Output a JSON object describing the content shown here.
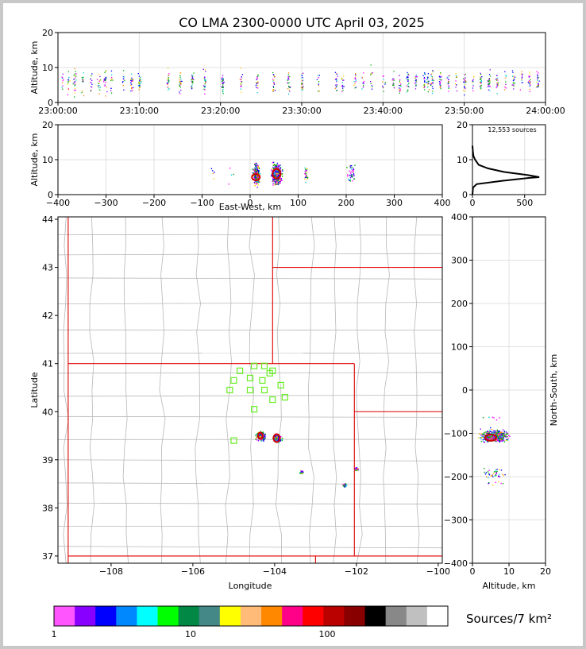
{
  "page": {
    "title": "CO LMA 2300-0000 UTC April 03, 2025",
    "background": "#c8c8c8"
  },
  "chart_data": [
    {
      "id": "time_altitude",
      "type": "scatter",
      "ylabel": "Altitude, km",
      "xlim": [
        "23:00:00",
        "24:00:00"
      ],
      "ylim": [
        0,
        20
      ],
      "xticks": [
        "23:00:00",
        "23:10:00",
        "23:20:00",
        "23:30:00",
        "23:40:00",
        "23:50:00",
        "24:00:00"
      ],
      "yticks": [
        "0",
        "10",
        "20"
      ],
      "grid": true,
      "note_bursts_minutes": [
        0.5,
        1.2,
        2,
        3,
        4,
        5,
        5.8,
        6.5,
        8,
        9,
        10,
        13.5,
        15,
        16.5,
        18,
        20.2,
        22.5,
        24.5,
        26.5,
        28.3,
        30,
        32,
        34.2,
        35,
        36.5,
        37.5,
        38.5,
        40,
        41.2,
        42,
        43,
        44,
        45,
        45.5,
        46,
        47,
        48,
        49,
        50,
        51,
        52,
        53,
        54,
        55,
        56,
        57,
        58,
        59
      ]
    },
    {
      "id": "ew_altitude",
      "type": "scatter",
      "xlabel": "East-West, km",
      "ylabel": "Altitude, km",
      "xlim": [
        -400,
        400
      ],
      "ylim": [
        0,
        20
      ],
      "xticks": [
        "−400",
        "−300",
        "−200",
        "−100",
        "0",
        "100",
        "200",
        "300",
        "400"
      ],
      "yticks": [
        "0",
        "10",
        "20"
      ],
      "grid": true
    },
    {
      "id": "altitude_histogram",
      "type": "line",
      "annotation": "12,553 sources",
      "xlim": [
        0,
        700
      ],
      "ylim": [
        0,
        20
      ],
      "xticks": [
        "0",
        "500"
      ],
      "yticks": [
        "0",
        "10",
        "20"
      ],
      "profile": [
        [
          0,
          0
        ],
        [
          5,
          2
        ],
        [
          40,
          3
        ],
        [
          300,
          4
        ],
        [
          550,
          4.8
        ],
        [
          640,
          5
        ],
        [
          530,
          5.6
        ],
        [
          300,
          6.5
        ],
        [
          150,
          7.5
        ],
        [
          60,
          8.5
        ],
        [
          25,
          10
        ],
        [
          10,
          11
        ],
        [
          4,
          12.5
        ],
        [
          0,
          14
        ]
      ]
    },
    {
      "id": "plan_view",
      "type": "scatter",
      "xlabel": "Longitude",
      "ylabel": "Latitude",
      "xlim": [
        -109.3,
        -99.9
      ],
      "ylim": [
        36.85,
        44.05
      ],
      "xticks": [
        "−108",
        "−106",
        "−104",
        "−102",
        "−100"
      ],
      "yticks": [
        "37",
        "38",
        "39",
        "40",
        "41",
        "42",
        "43",
        "44"
      ],
      "stations": [
        [
          -104.25,
          40.95
        ],
        [
          -104.5,
          40.95
        ],
        [
          -104.85,
          40.85
        ],
        [
          -104.05,
          40.85
        ],
        [
          -104.12,
          40.8
        ],
        [
          -104.6,
          40.7
        ],
        [
          -105.0,
          40.65
        ],
        [
          -104.3,
          40.65
        ],
        [
          -103.85,
          40.55
        ],
        [
          -104.25,
          40.45
        ],
        [
          -104.6,
          40.45
        ],
        [
          -105.1,
          40.45
        ],
        [
          -103.75,
          40.3
        ],
        [
          -104.05,
          40.25
        ],
        [
          -104.5,
          40.05
        ],
        [
          -105.0,
          39.4
        ]
      ],
      "clusters": [
        [
          -104.35,
          39.5
        ],
        [
          -103.95,
          39.45
        ],
        [
          -103.35,
          38.75
        ],
        [
          -102.0,
          38.82
        ],
        [
          -102.3,
          38.48
        ]
      ]
    },
    {
      "id": "altitude_ns",
      "type": "scatter",
      "xlabel": "Altitude, km",
      "ylabel": "North-South, km",
      "xlim": [
        0,
        20
      ],
      "ylim": [
        -400,
        400
      ],
      "xticks": [
        "0",
        "10",
        "20"
      ],
      "yticks": [
        "−400",
        "−300",
        "−200",
        "−100",
        "0",
        "100",
        "200",
        "300",
        "400"
      ],
      "grid": true
    }
  ],
  "colorbar": {
    "label": "Sources/7 km²",
    "ticks": [
      "1",
      "10",
      "100"
    ],
    "colors": [
      "#ff55ff",
      "#8800ff",
      "#0000ff",
      "#0088ff",
      "#00ffff",
      "#00ff00",
      "#008844",
      "#448888",
      "#ffff00",
      "#ffbb77",
      "#ff8800",
      "#ff0088",
      "#ff0000",
      "#bb0000",
      "#880000",
      "#000000",
      "#888888",
      "#c0c0c0",
      "#ffffff"
    ]
  }
}
